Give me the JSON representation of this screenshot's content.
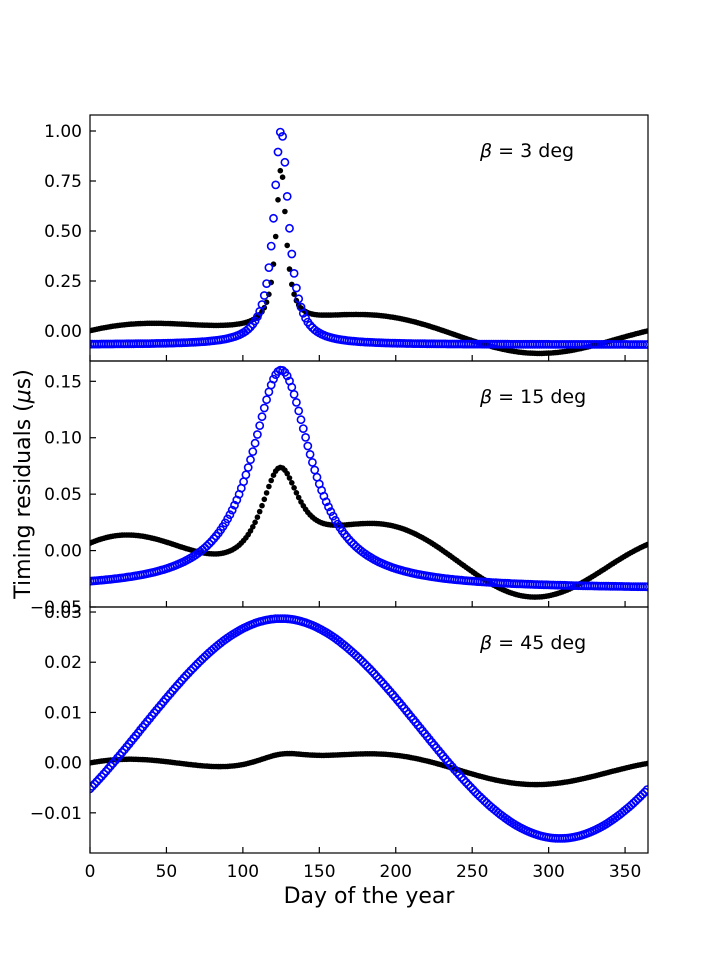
{
  "figure": {
    "ylabel": "Timing residuals (μs)",
    "ylabel_prefix": "Timing residuals (",
    "ylabel_mu": "μ",
    "ylabel_suffix": "s)",
    "xlabel": "Day of the year",
    "series_colors": {
      "filled": "#000000",
      "open": "#0000ff"
    }
  },
  "chart_data": [
    {
      "type": "scatter",
      "annotation": "β = 3 deg",
      "annotation_symbol": "β",
      "annotation_text": " = 3 deg",
      "annotation_position": "top-right",
      "xlim": [
        0,
        365
      ],
      "ylim": [
        -0.15,
        1.08
      ],
      "yticks": [
        0.0,
        0.25,
        0.5,
        0.75,
        1.0
      ],
      "ytick_labels": [
        "0.00",
        "0.25",
        "0.50",
        "0.75",
        "1.00"
      ],
      "xticks": [
        0,
        50,
        100,
        150,
        200,
        250,
        300,
        350
      ],
      "series": [
        {
          "name": "filled",
          "marker": "filled-circle",
          "color": "#000000",
          "model": {
            "base": 0.0,
            "amp1": 0.07,
            "amp2": 0.045,
            "phase2": 15,
            "peak": 0.78,
            "peak_day": 125,
            "width": 4
          }
        },
        {
          "name": "open",
          "marker": "open-circle",
          "color": "#0000ff",
          "model": {
            "base": -0.068,
            "amp1": 0.0,
            "amp2": 0.0,
            "phase2": 0,
            "peak": 1.07,
            "peak_day": 125,
            "width": 6
          }
        }
      ]
    },
    {
      "type": "scatter",
      "annotation": "β = 15 deg",
      "annotation_symbol": "β",
      "annotation_text": " = 15 deg",
      "annotation_position": "top-right",
      "xlim": [
        0,
        365
      ],
      "ylim": [
        -0.05,
        0.168
      ],
      "yticks": [
        -0.05,
        0.0,
        0.05,
        0.1,
        0.15
      ],
      "ytick_labels": [
        "−0.05",
        "0.00",
        "0.05",
        "0.10",
        "0.15"
      ],
      "xticks": [
        0,
        50,
        100,
        150,
        200,
        250,
        300,
        350
      ],
      "series": [
        {
          "name": "filled",
          "marker": "filled-circle",
          "color": "#000000",
          "model": {
            "base": -0.008,
            "amp1": 0.012,
            "amp2": 0.0225,
            "phase2": 15,
            "peak": 0.088,
            "peak_day": 124,
            "width": 16
          }
        },
        {
          "name": "open",
          "marker": "open-circle",
          "color": "#0000ff",
          "model": {
            "base": -0.034,
            "amp1": 0.0,
            "amp2": 0.0,
            "phase2": 0,
            "peak": 0.194,
            "peak_day": 125,
            "width": 24
          }
        }
      ]
    },
    {
      "type": "scatter",
      "annotation": "β = 45 deg",
      "annotation_symbol": "β",
      "annotation_text": " = 45 deg",
      "annotation_position": "top-right",
      "xlim": [
        0,
        365
      ],
      "ylim": [
        -0.018,
        0.031
      ],
      "yticks": [
        -0.01,
        0.0,
        0.01,
        0.02,
        0.03
      ],
      "ytick_labels": [
        "−0.01",
        "0.00",
        "0.01",
        "0.02",
        "0.03"
      ],
      "xticks": [
        0,
        50,
        100,
        150,
        200,
        250,
        300,
        350
      ],
      "xtick_labels": [
        "0",
        "50",
        "100",
        "150",
        "200",
        "250",
        "300",
        "350"
      ],
      "series": [
        {
          "name": "filled",
          "marker": "filled-circle",
          "color": "#000000",
          "model": {
            "base": -0.0012,
            "amp1": 0.0013,
            "amp2": 0.002,
            "phase2": 15,
            "peak": 0.0032,
            "peak_day": 125,
            "width": 25
          }
        },
        {
          "name": "open",
          "marker": "open-circle",
          "color": "#0000ff",
          "model": {
            "kind": "sine",
            "center": 0.0068,
            "amp": 0.0219,
            "peak_day": 125
          }
        }
      ]
    }
  ]
}
